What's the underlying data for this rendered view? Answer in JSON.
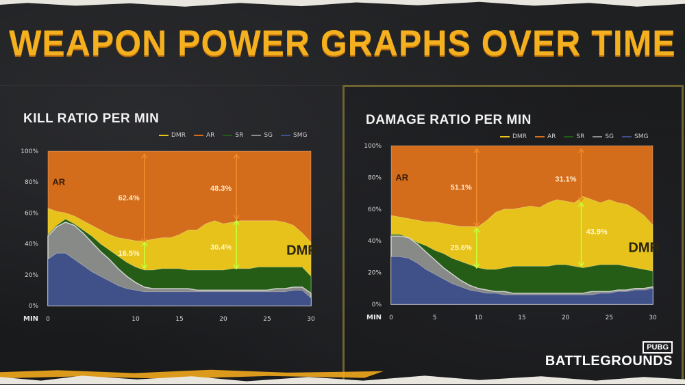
{
  "title": "WEAPON POWER GRAPHS OVER TIME",
  "colors": {
    "title": "#f4b01e",
    "AR": "#d96f1b",
    "DMR": "#e7c51a",
    "SR": "#1f5a16",
    "SG": "#8c8c8c",
    "SMG": "#3e4f8a",
    "annotation_orange": "#f08a2a",
    "annotation_green": "#c6ff3a"
  },
  "logo": {
    "top": "PUBG",
    "main": "BATTLEGROUNDS"
  },
  "chart_data": [
    {
      "type": "area",
      "stacked": true,
      "title": "KILL RATIO PER MIN",
      "xlabel": "MIN",
      "ylabel": "",
      "ylim": [
        0,
        100
      ],
      "xlim": [
        0,
        30
      ],
      "xticks": [
        "0",
        "10",
        "15",
        "20",
        "25",
        "30"
      ],
      "xtick_values": [
        0,
        10,
        15,
        20,
        25,
        30
      ],
      "yticks": [
        "0%",
        "20%",
        "40%",
        "60%",
        "80%",
        "100%"
      ],
      "ytick_values": [
        0,
        20,
        40,
        60,
        80,
        100
      ],
      "legend": [
        "DMR",
        "AR",
        "SR",
        "SG",
        "SMG"
      ],
      "x": [
        0,
        1,
        2,
        3,
        4,
        5,
        6,
        7,
        8,
        9,
        10,
        11,
        12,
        13,
        14,
        15,
        16,
        17,
        18,
        19,
        20,
        21,
        22,
        23,
        24,
        25,
        26,
        27,
        28,
        29,
        30
      ],
      "cumulative": {
        "SMG": [
          30,
          34,
          34,
          30,
          26,
          22,
          19,
          16,
          13,
          11,
          10,
          9,
          9,
          9,
          9,
          9,
          9,
          9,
          9,
          9,
          9,
          9,
          9,
          9,
          9,
          9,
          9,
          9,
          10,
          10,
          5
        ],
        "SG": [
          45,
          51,
          54,
          52,
          47,
          41,
          35,
          30,
          24,
          19,
          15,
          12,
          11,
          11,
          11,
          11,
          11,
          10,
          10,
          10,
          10,
          10,
          10,
          10,
          10,
          10,
          11,
          11,
          12,
          12,
          8
        ],
        "SR": [
          46,
          52,
          56,
          53,
          49,
          45,
          40,
          36,
          32,
          28,
          25,
          23,
          23,
          24,
          24,
          24,
          23,
          23,
          23,
          23,
          23,
          24,
          24,
          24,
          25,
          25,
          25,
          25,
          25,
          25,
          19
        ],
        "DMR": [
          63,
          61,
          60,
          58,
          55,
          52,
          49,
          46,
          44,
          43,
          42,
          42,
          43,
          44,
          44,
          46,
          49,
          49,
          53,
          55,
          53,
          54,
          55,
          55,
          55,
          55,
          55,
          54,
          52,
          47,
          41
        ],
        "AR": [
          100,
          100,
          100,
          100,
          100,
          100,
          100,
          100,
          100,
          100,
          100,
          100,
          100,
          100,
          100,
          100,
          100,
          100,
          100,
          100,
          100,
          100,
          100,
          100,
          100,
          100,
          100,
          100,
          100,
          100,
          100
        ]
      },
      "series_labels": [
        {
          "text": "AR",
          "series": "AR",
          "x": 0.5,
          "y": 78
        },
        {
          "text": "DMR",
          "series": "DMR",
          "x": 27.2,
          "y": 33
        }
      ],
      "annotations": [
        {
          "text": "62.4%",
          "color": "orange",
          "x": 11,
          "y_from": 41,
          "y_to": 98,
          "label_y": 70,
          "label_side": "left"
        },
        {
          "text": "16.5%",
          "color": "green",
          "x": 11,
          "y_from": 24,
          "y_to": 41,
          "label_y": 34,
          "label_side": "left"
        },
        {
          "text": "48.3%",
          "color": "orange",
          "x": 21.5,
          "y_from": 56,
          "y_to": 98,
          "label_y": 76,
          "label_side": "left"
        },
        {
          "text": "30.4%",
          "color": "green",
          "x": 21.5,
          "y_from": 24,
          "y_to": 55,
          "label_y": 38,
          "label_side": "left"
        }
      ]
    },
    {
      "type": "area",
      "stacked": true,
      "title": "DAMAGE RATIO PER MIN",
      "xlabel": "MIN",
      "ylabel": "",
      "ylim": [
        0,
        100
      ],
      "xlim": [
        0,
        30
      ],
      "xticks": [
        "0",
        "5",
        "10",
        "15",
        "20",
        "25",
        "30"
      ],
      "xtick_values": [
        0,
        5,
        10,
        15,
        20,
        25,
        30
      ],
      "yticks": [
        "0%",
        "20%",
        "40%",
        "60%",
        "80%",
        "100%"
      ],
      "ytick_values": [
        0,
        20,
        40,
        60,
        80,
        100
      ],
      "legend": [
        "DMR",
        "AR",
        "SR",
        "SG",
        "SMG"
      ],
      "x": [
        0,
        1,
        2,
        3,
        4,
        5,
        6,
        7,
        8,
        9,
        10,
        11,
        12,
        13,
        14,
        15,
        16,
        17,
        18,
        19,
        20,
        21,
        22,
        23,
        24,
        25,
        26,
        27,
        28,
        29,
        30
      ],
      "cumulative": {
        "SMG": [
          30,
          30,
          29,
          26,
          22,
          19,
          16,
          13,
          11,
          9,
          8,
          7,
          7,
          6,
          6,
          6,
          6,
          6,
          6,
          6,
          6,
          6,
          6,
          6,
          7,
          7,
          8,
          8,
          9,
          9,
          10
        ],
        "SG": [
          43,
          43,
          42,
          38,
          33,
          28,
          23,
          19,
          15,
          12,
          10,
          9,
          8,
          8,
          7,
          7,
          7,
          7,
          7,
          7,
          7,
          7,
          7,
          8,
          8,
          8,
          9,
          9,
          10,
          10,
          11
        ],
        "SR": [
          44,
          44,
          42,
          39,
          37,
          34,
          32,
          29,
          27,
          25,
          23,
          22,
          22,
          23,
          24,
          24,
          24,
          24,
          24,
          25,
          25,
          24,
          23,
          24,
          25,
          25,
          25,
          24,
          23,
          22,
          21
        ],
        "DMR": [
          56,
          55,
          54,
          53,
          52,
          52,
          51,
          50,
          49,
          49,
          49,
          53,
          58,
          60,
          60,
          61,
          62,
          61,
          64,
          66,
          65,
          64,
          68,
          66,
          64,
          66,
          64,
          63,
          60,
          56,
          50
        ],
        "AR": [
          100,
          100,
          100,
          100,
          100,
          100,
          100,
          100,
          100,
          100,
          100,
          100,
          100,
          100,
          100,
          100,
          100,
          100,
          100,
          100,
          100,
          100,
          100,
          100,
          100,
          100,
          100,
          100,
          100,
          100,
          100
        ]
      },
      "series_labels": [
        {
          "text": "AR",
          "series": "AR",
          "x": 0.5,
          "y": 78
        },
        {
          "text": "DMR",
          "series": "DMR",
          "x": 27.2,
          "y": 33
        }
      ],
      "annotations": [
        {
          "text": "51.1%",
          "color": "orange",
          "x": 9.8,
          "y_from": 49,
          "y_to": 98,
          "label_y": 74,
          "label_side": "left"
        },
        {
          "text": "25.6%",
          "color": "green",
          "x": 9.8,
          "y_from": 23,
          "y_to": 48,
          "label_y": 36,
          "label_side": "left"
        },
        {
          "text": "31.1%",
          "color": "orange",
          "x": 21.8,
          "y_from": 65,
          "y_to": 98,
          "label_y": 79,
          "label_side": "left"
        },
        {
          "text": "43.9%",
          "color": "green",
          "x": 21.8,
          "y_from": 24,
          "y_to": 64,
          "label_y": 46,
          "label_side": "right"
        }
      ]
    }
  ]
}
